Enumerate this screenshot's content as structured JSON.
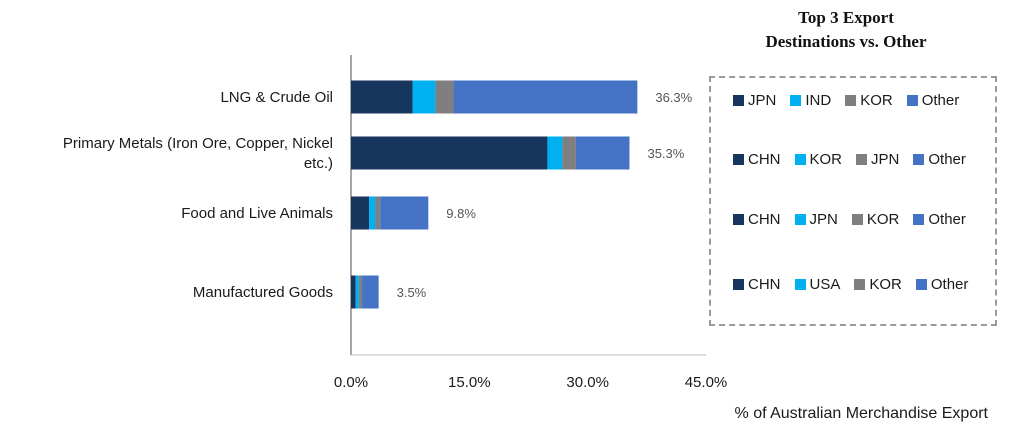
{
  "chart_data": {
    "type": "bar",
    "orientation": "horizontal",
    "stacked": true,
    "categories": [
      "LNG & Crude Oil",
      "Primary Metals (Iron Ore, Copper, Nickel etc.)",
      "Food and Live Animals",
      "Manufactured Goods"
    ],
    "category_label_lines": [
      [
        "LNG & Crude Oil"
      ],
      [
        "Primary Metals (Iron Ore, Copper, Nickel",
        "etc.)"
      ],
      [
        "Food and Live Animals"
      ],
      [
        "Manufactured Goods"
      ]
    ],
    "segment_colors": [
      "#17365d",
      "#00b0f0",
      "#7f7f7f",
      "#4472c4"
    ],
    "segments": [
      {
        "destinations": [
          "JPN",
          "IND",
          "KOR",
          "Other"
        ],
        "values": [
          7.8,
          2.9,
          2.3,
          23.3
        ]
      },
      {
        "destinations": [
          "CHN",
          "KOR",
          "JPN",
          "Other"
        ],
        "values": [
          24.9,
          1.9,
          1.7,
          6.8
        ]
      },
      {
        "destinations": [
          "CHN",
          "JPN",
          "KOR",
          "Other"
        ],
        "values": [
          2.3,
          0.8,
          0.6,
          6.1
        ]
      },
      {
        "destinations": [
          "CHN",
          "USA",
          "KOR",
          "Other"
        ],
        "values": [
          0.6,
          0.4,
          0.4,
          2.1
        ]
      }
    ],
    "totals": [
      36.3,
      35.3,
      9.8,
      3.5
    ],
    "data_labels": [
      "36.3%",
      "35.3%",
      "9.8%",
      "3.5%"
    ],
    "x_ticks": [
      "0.0%",
      "15.0%",
      "30.0%",
      "45.0%"
    ],
    "x_tick_values": [
      0,
      15,
      30,
      45
    ],
    "xlim": [
      0,
      45
    ],
    "xlabel": "% of Australian Merchandise Export",
    "ylabel": "",
    "grid": false,
    "legend_title": "Top 3 Export Destinations vs. Other",
    "legend_title_lines": [
      "Top 3 Export",
      "Destinations vs. Other"
    ],
    "legend_placement": "right"
  }
}
